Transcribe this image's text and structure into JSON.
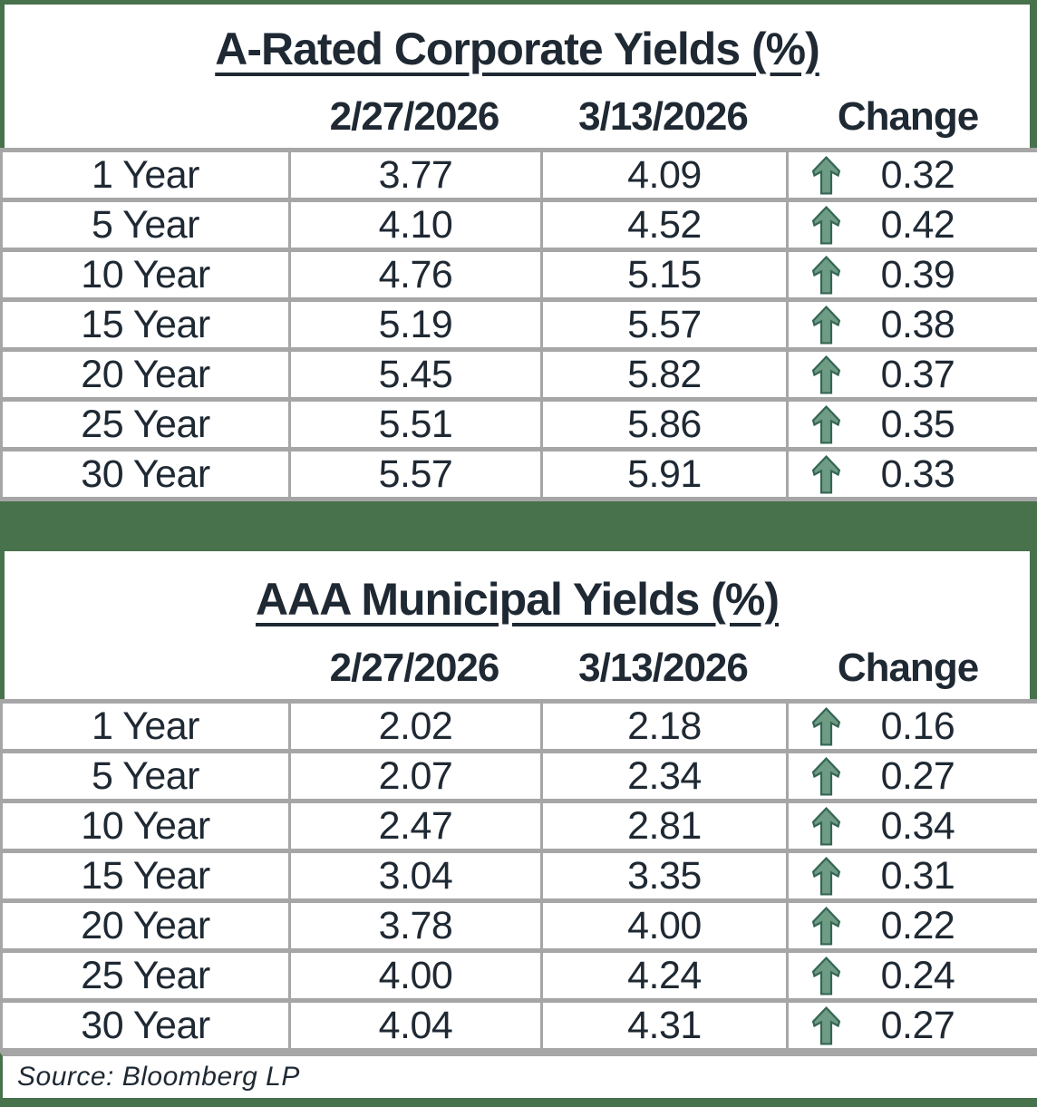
{
  "colors": {
    "frame_green": "#47724c",
    "arrow_fill": "#6f9c85",
    "arrow_outline": "#356654",
    "border_gray": "#a6a6a6",
    "text_dark": "#1f2933"
  },
  "source": "Source: Bloomberg LP",
  "icons": {
    "change_icon": "up-arrow-icon"
  },
  "chart_data": [
    {
      "type": "table",
      "title": "A-Rated Corporate Yields (%)",
      "columns": [
        "",
        "2/27/2026",
        "3/13/2026",
        "Change"
      ],
      "change_direction": "up",
      "rows": [
        {
          "maturity": "1 Year",
          "start": 3.77,
          "end": 4.09,
          "change": 0.32
        },
        {
          "maturity": "5 Year",
          "start": 4.1,
          "end": 4.52,
          "change": 0.42
        },
        {
          "maturity": "10 Year",
          "start": 4.76,
          "end": 5.15,
          "change": 0.39
        },
        {
          "maturity": "15 Year",
          "start": 5.19,
          "end": 5.57,
          "change": 0.38
        },
        {
          "maturity": "20 Year",
          "start": 5.45,
          "end": 5.82,
          "change": 0.37
        },
        {
          "maturity": "25 Year",
          "start": 5.51,
          "end": 5.86,
          "change": 0.35
        },
        {
          "maturity": "30 Year",
          "start": 5.57,
          "end": 5.91,
          "change": 0.33
        }
      ]
    },
    {
      "type": "table",
      "title": "AAA Municipal Yields (%)",
      "columns": [
        "",
        "2/27/2026",
        "3/13/2026",
        "Change"
      ],
      "change_direction": "up",
      "rows": [
        {
          "maturity": "1 Year",
          "start": 2.02,
          "end": 2.18,
          "change": 0.16
        },
        {
          "maturity": "5 Year",
          "start": 2.07,
          "end": 2.34,
          "change": 0.27
        },
        {
          "maturity": "10 Year",
          "start": 2.47,
          "end": 2.81,
          "change": 0.34
        },
        {
          "maturity": "15 Year",
          "start": 3.04,
          "end": 3.35,
          "change": 0.31
        },
        {
          "maturity": "20 Year",
          "start": 3.78,
          "end": 4.0,
          "change": 0.22
        },
        {
          "maturity": "25 Year",
          "start": 4.0,
          "end": 4.24,
          "change": 0.24
        },
        {
          "maturity": "30 Year",
          "start": 4.04,
          "end": 4.31,
          "change": 0.27
        }
      ]
    }
  ]
}
